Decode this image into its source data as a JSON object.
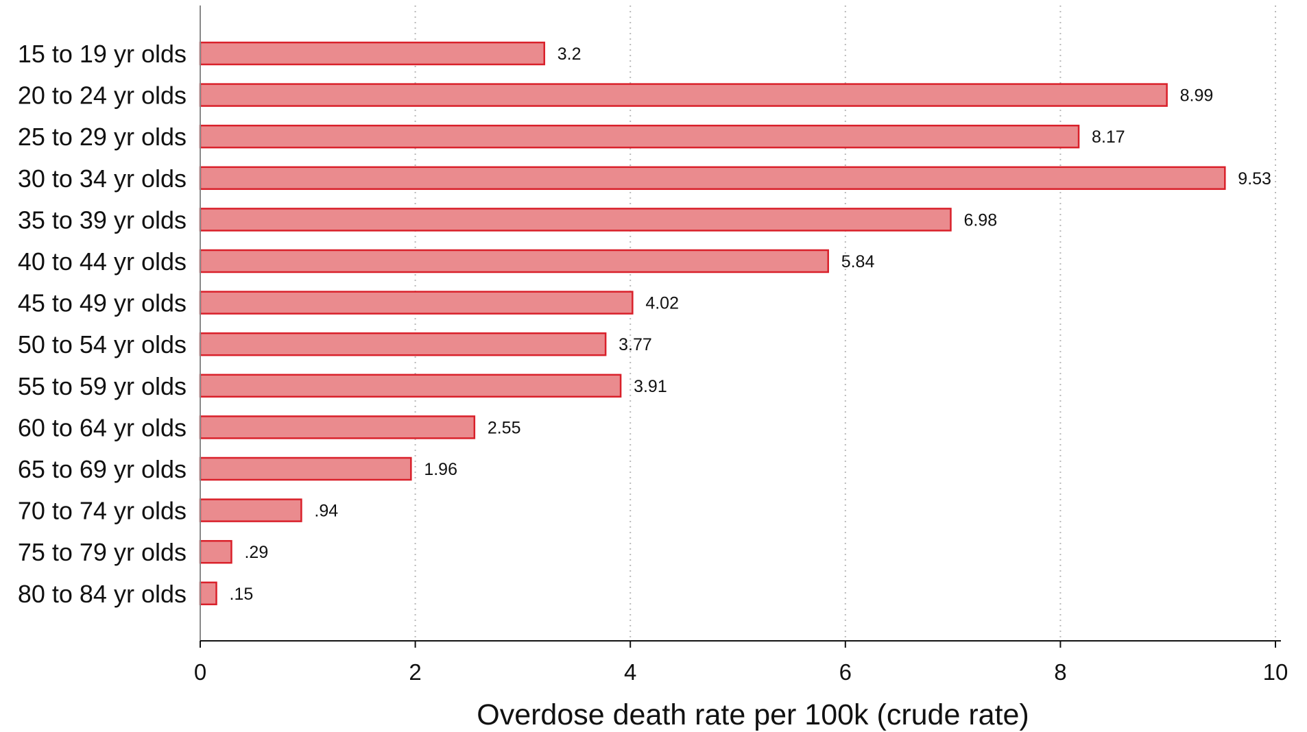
{
  "chart_data": {
    "type": "bar",
    "orientation": "horizontal",
    "categories": [
      "15 to 19 yr olds",
      "20 to 24 yr olds",
      "25 to 29 yr olds",
      "30 to 34 yr olds",
      "35 to 39 yr olds",
      "40 to 44 yr olds",
      "45 to 49 yr olds",
      "50 to 54 yr olds",
      "55 to 59 yr olds",
      "60 to 64 yr olds",
      "65 to 69 yr olds",
      "70 to 74 yr olds",
      "75 to 79 yr olds",
      "80 to 84 yr olds"
    ],
    "values": [
      3.2,
      8.99,
      8.17,
      9.53,
      6.98,
      5.84,
      4.02,
      3.77,
      3.91,
      2.55,
      1.96,
      0.94,
      0.29,
      0.15
    ],
    "value_labels": [
      "3.2",
      "8.99",
      "8.17",
      "9.53",
      "6.98",
      "5.84",
      "4.02",
      "3.77",
      "3.91",
      "2.55",
      "1.96",
      ".94",
      ".29",
      ".15"
    ],
    "title": "",
    "xlabel": "Overdose death rate per 100k (crude rate)",
    "ylabel": "",
    "xlim": [
      0,
      10
    ],
    "x_ticks": [
      0,
      2,
      4,
      6,
      8,
      10
    ],
    "x_tick_labels": [
      "0",
      "2",
      "4",
      "6",
      "8",
      "10"
    ],
    "grid": "vertical-dotted",
    "legend": "none",
    "bar_fill": "#ea8b8e",
    "bar_stroke": "#d9202a"
  }
}
